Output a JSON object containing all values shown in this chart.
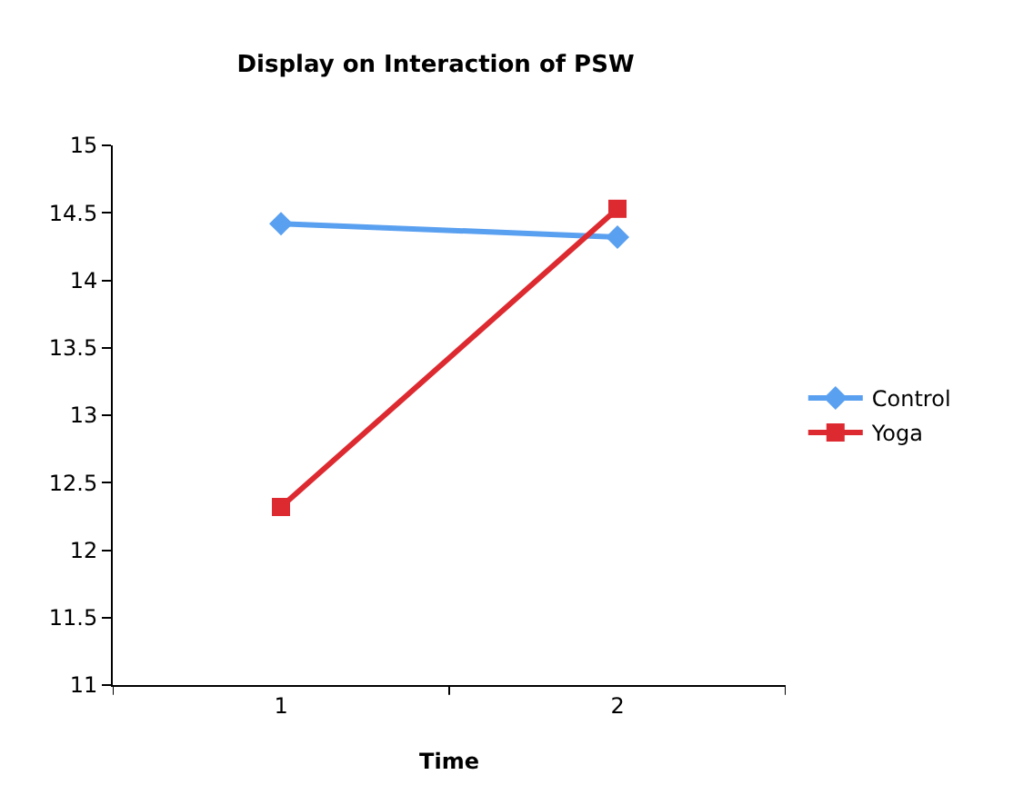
{
  "chart_data": {
    "type": "line",
    "title": "Display on Interaction of PSW",
    "xlabel": "Time",
    "categories": [
      "1",
      "2"
    ],
    "series": [
      {
        "name": "Control",
        "color": "#5aa0f0",
        "values": [
          14.42,
          14.32
        ],
        "marker": "diamond"
      },
      {
        "name": "Yoga",
        "color": "#dd2a30",
        "values": [
          12.32,
          14.53
        ],
        "marker": "square"
      }
    ],
    "ylim": [
      11,
      15
    ],
    "yticks": [
      11,
      11.5,
      12,
      12.5,
      13,
      13.5,
      14,
      14.5,
      15
    ],
    "grid": false,
    "legend": "right",
    "line_style": "solid"
  }
}
